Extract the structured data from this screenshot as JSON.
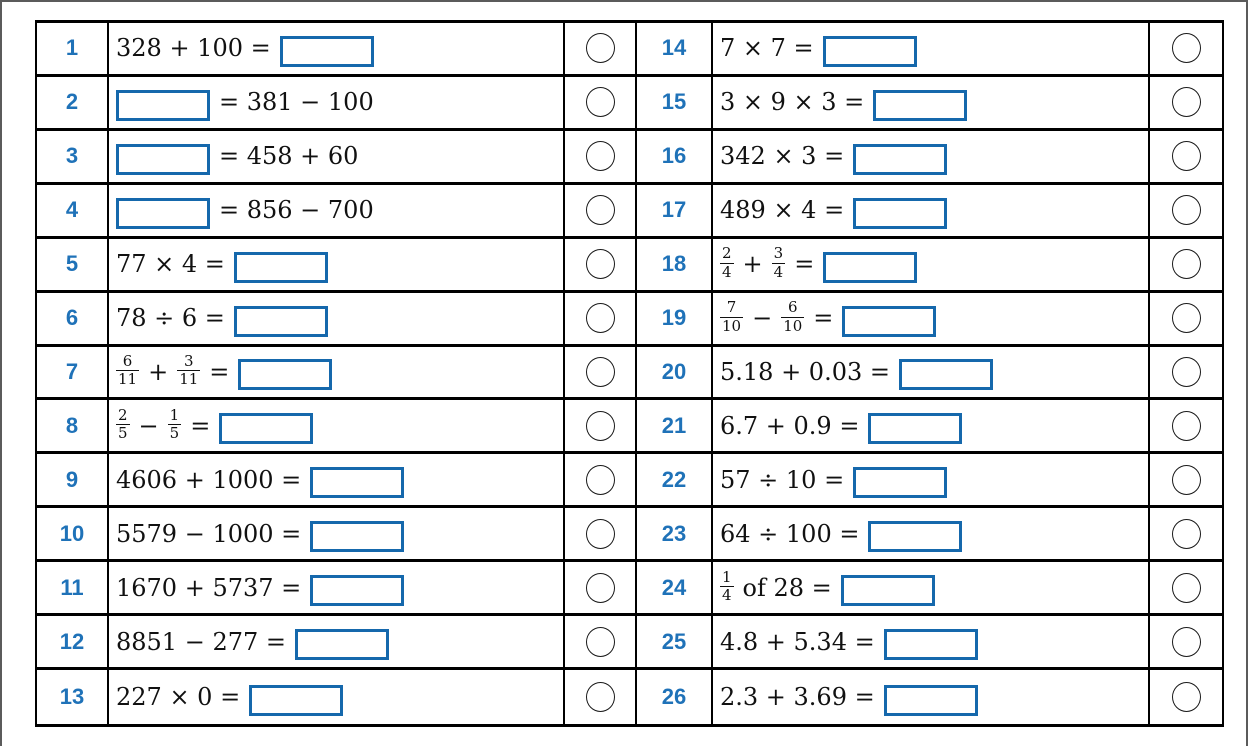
{
  "colors": {
    "accent_blue": "#1568ac",
    "number_blue": "#1f72b8",
    "line_black": "#000000",
    "frame_gray": "#5b5b5b",
    "text_black": "#111111"
  },
  "worksheet": {
    "columns": [
      {
        "rows": [
          {
            "number": "1",
            "box": "after",
            "parts": [
              {
                "type": "text",
                "value": "328 + 100 ="
              }
            ]
          },
          {
            "number": "2",
            "box": "before",
            "parts": [
              {
                "type": "text",
                "value": "= 381 − 100"
              }
            ]
          },
          {
            "number": "3",
            "box": "before",
            "parts": [
              {
                "type": "text",
                "value": "= 458 + 60"
              }
            ]
          },
          {
            "number": "4",
            "box": "before",
            "parts": [
              {
                "type": "text",
                "value": "= 856 − 700"
              }
            ]
          },
          {
            "number": "5",
            "box": "after",
            "parts": [
              {
                "type": "text",
                "value": "77 × 4 ="
              }
            ]
          },
          {
            "number": "6",
            "box": "after",
            "parts": [
              {
                "type": "text",
                "value": "78 ÷ 6 ="
              }
            ]
          },
          {
            "number": "7",
            "box": "after",
            "parts": [
              {
                "type": "frac",
                "num": "6",
                "den": "11"
              },
              {
                "type": "text",
                "value": "+"
              },
              {
                "type": "frac",
                "num": "3",
                "den": "11"
              },
              {
                "type": "text",
                "value": "="
              }
            ]
          },
          {
            "number": "8",
            "box": "after",
            "parts": [
              {
                "type": "frac",
                "num": "2",
                "den": "5"
              },
              {
                "type": "text",
                "value": "−"
              },
              {
                "type": "frac",
                "num": "1",
                "den": "5"
              },
              {
                "type": "text",
                "value": "="
              }
            ]
          },
          {
            "number": "9",
            "box": "after",
            "parts": [
              {
                "type": "text",
                "value": "4606 + 1000 ="
              }
            ]
          },
          {
            "number": "10",
            "box": "after",
            "parts": [
              {
                "type": "text",
                "value": "5579 − 1000 ="
              }
            ]
          },
          {
            "number": "11",
            "box": "after",
            "parts": [
              {
                "type": "text",
                "value": "1670 + 5737 ="
              }
            ]
          },
          {
            "number": "12",
            "box": "after",
            "parts": [
              {
                "type": "text",
                "value": "8851 − 277 ="
              }
            ]
          },
          {
            "number": "13",
            "box": "after",
            "parts": [
              {
                "type": "text",
                "value": "227 × 0 ="
              }
            ]
          }
        ]
      },
      {
        "rows": [
          {
            "number": "14",
            "box": "after",
            "parts": [
              {
                "type": "text",
                "value": "7 × 7 ="
              }
            ]
          },
          {
            "number": "15",
            "box": "after",
            "parts": [
              {
                "type": "text",
                "value": "3 × 9 × 3 ="
              }
            ]
          },
          {
            "number": "16",
            "box": "after",
            "parts": [
              {
                "type": "text",
                "value": "342 × 3 ="
              }
            ]
          },
          {
            "number": "17",
            "box": "after",
            "parts": [
              {
                "type": "text",
                "value": "489 × 4 ="
              }
            ]
          },
          {
            "number": "18",
            "box": "after",
            "parts": [
              {
                "type": "frac",
                "num": "2",
                "den": "4"
              },
              {
                "type": "text",
                "value": "+"
              },
              {
                "type": "frac",
                "num": "3",
                "den": "4"
              },
              {
                "type": "text",
                "value": "="
              }
            ]
          },
          {
            "number": "19",
            "box": "after",
            "parts": [
              {
                "type": "frac",
                "num": "7",
                "den": "10"
              },
              {
                "type": "text",
                "value": "−"
              },
              {
                "type": "frac",
                "num": "6",
                "den": "10"
              },
              {
                "type": "text",
                "value": "="
              }
            ]
          },
          {
            "number": "20",
            "box": "after",
            "parts": [
              {
                "type": "text",
                "value": "5.18 + 0.03 ="
              }
            ]
          },
          {
            "number": "21",
            "box": "after",
            "parts": [
              {
                "type": "text",
                "value": "6.7 + 0.9 ="
              }
            ]
          },
          {
            "number": "22",
            "box": "after",
            "parts": [
              {
                "type": "text",
                "value": "57 ÷ 10 ="
              }
            ]
          },
          {
            "number": "23",
            "box": "after",
            "parts": [
              {
                "type": "text",
                "value": "64 ÷ 100 ="
              }
            ]
          },
          {
            "number": "24",
            "box": "after",
            "parts": [
              {
                "type": "frac",
                "num": "1",
                "den": "4"
              },
              {
                "type": "text",
                "value": "of 28 ="
              }
            ]
          },
          {
            "number": "25",
            "box": "after",
            "parts": [
              {
                "type": "text",
                "value": "4.8 + 5.34 ="
              }
            ]
          },
          {
            "number": "26",
            "box": "after",
            "parts": [
              {
                "type": "text",
                "value": "2.3 + 3.69 ="
              }
            ]
          }
        ]
      }
    ]
  }
}
